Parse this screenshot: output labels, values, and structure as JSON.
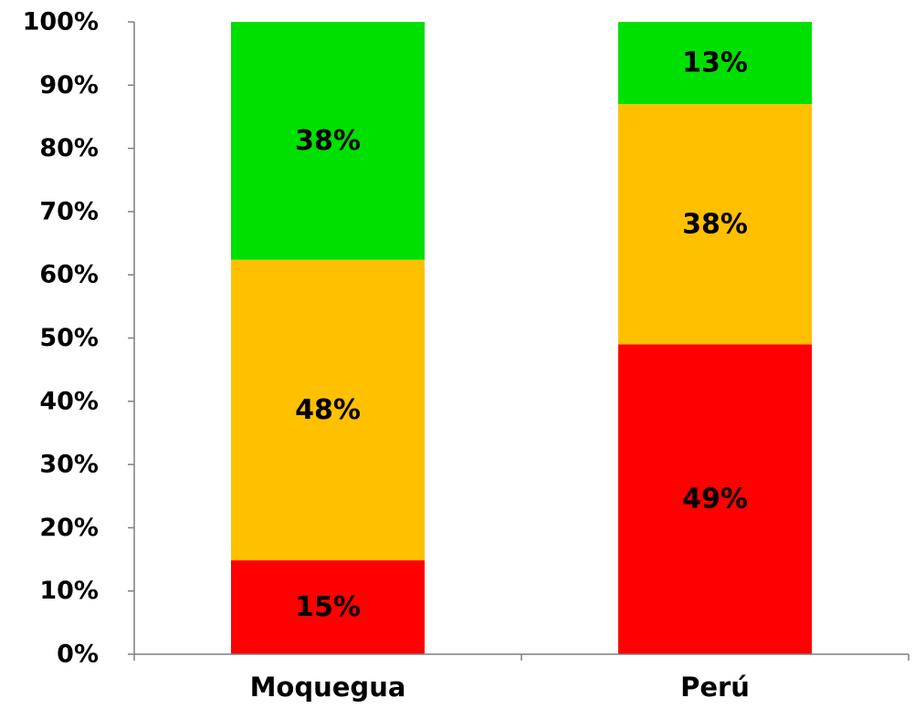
{
  "chart_data": {
    "type": "bar",
    "stacked": "percent",
    "categories": [
      "Moquegua",
      "Perú"
    ],
    "series": [
      {
        "values": [
          15,
          49
        ],
        "labels": [
          "15%",
          "49%"
        ],
        "color": "#ff0000"
      },
      {
        "values": [
          48,
          38
        ],
        "labels": [
          "48%",
          "38%"
        ],
        "color": "#ffc000"
      },
      {
        "values": [
          38,
          13
        ],
        "labels": [
          "38%",
          "13%"
        ],
        "color": "#00e000"
      }
    ],
    "y_ticks": [
      "0%",
      "10%",
      "20%",
      "30%",
      "40%",
      "50%",
      "60%",
      "70%",
      "80%",
      "90%",
      "100%"
    ],
    "ylim": [
      0,
      100
    ],
    "grid": false,
    "legend": "none"
  }
}
